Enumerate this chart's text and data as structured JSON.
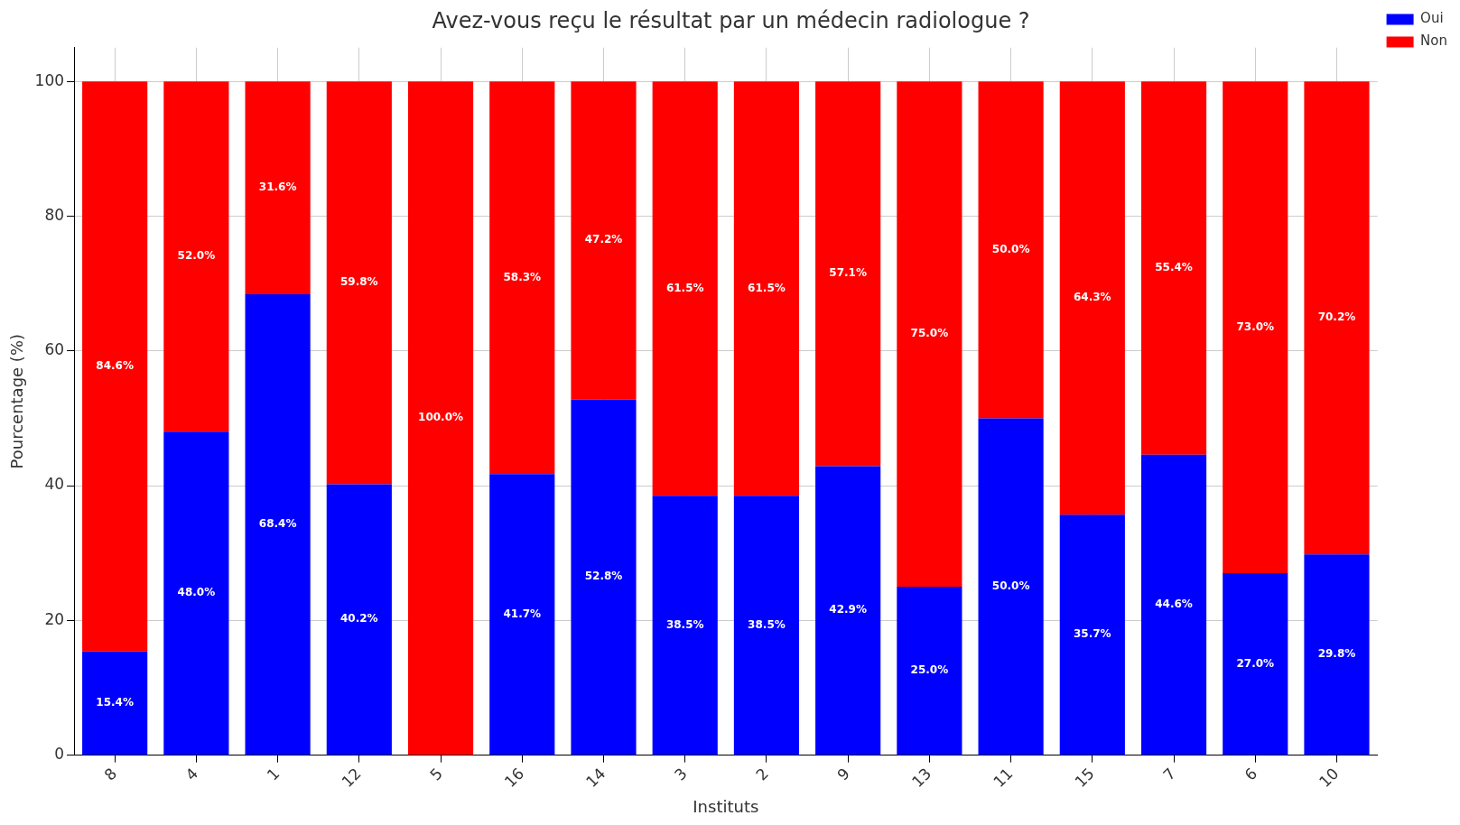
{
  "chart_data": {
    "type": "bar",
    "title": "Avez-vous reçu le résultat par un médecin radiologue ?",
    "xlabel": "Instituts",
    "ylabel": "Pourcentage (%)",
    "categories": [
      "8",
      "4",
      "1",
      "12",
      "5",
      "16",
      "14",
      "3",
      "2",
      "9",
      "13",
      "11",
      "15",
      "7",
      "6",
      "10"
    ],
    "stacked": true,
    "series": [
      {
        "name": "Oui",
        "color": "#0000ff",
        "values": [
          15.4,
          48.0,
          68.4,
          40.2,
          0,
          41.7,
          52.8,
          38.5,
          38.5,
          42.9,
          25.0,
          50.0,
          35.7,
          44.6,
          27.0,
          29.8
        ],
        "value_labels": [
          "15.4%",
          "48.0%",
          "68.4%",
          "40.2%",
          null,
          "41.7%",
          "52.8%",
          "38.5%",
          "38.5%",
          "42.9%",
          "25.0%",
          "50.0%",
          "35.7%",
          "44.6%",
          "27.0%",
          "29.8%"
        ]
      },
      {
        "name": "Non",
        "color": "#ff0000",
        "values": [
          84.6,
          52.0,
          31.6,
          59.8,
          100.0,
          58.3,
          47.2,
          61.5,
          61.5,
          57.1,
          75.0,
          50.0,
          64.3,
          55.4,
          73.0,
          70.2
        ],
        "value_labels": [
          "84.6%",
          "52.0%",
          "31.6%",
          "59.8%",
          "100.0%",
          "58.3%",
          "47.2%",
          "61.5%",
          "61.5%",
          "57.1%",
          "75.0%",
          "50.0%",
          "64.3%",
          "55.4%",
          "73.0%",
          "70.2%"
        ]
      }
    ],
    "ylim": [
      0,
      105
    ],
    "yticks": [
      0,
      20,
      40,
      60,
      80,
      100
    ],
    "grid": true,
    "legend": "top right"
  }
}
